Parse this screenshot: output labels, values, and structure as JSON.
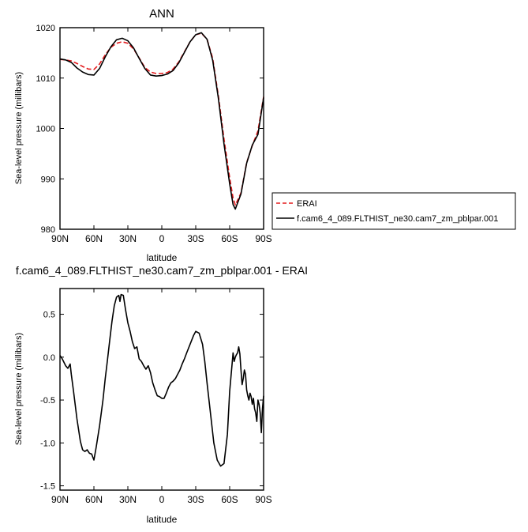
{
  "chart_data": [
    {
      "type": "line",
      "title": "ANN",
      "xlabel": "latitude",
      "ylabel": "Sea-level pressure (millibars)",
      "xlim": [
        90,
        -90
      ],
      "ylim": [
        980,
        1020
      ],
      "x_ticks": [
        90,
        60,
        30,
        0,
        -30,
        -60,
        -90
      ],
      "x_tick_labels": [
        "90N",
        "60N",
        "30N",
        "0",
        "30S",
        "60S",
        "90S"
      ],
      "y_ticks": [
        980,
        990,
        1000,
        1010,
        1020
      ],
      "y_tick_labels": [
        "980",
        "990",
        "1000",
        "1010",
        "1020"
      ],
      "grid": false,
      "legend_position": "outside-right",
      "series": [
        {
          "name": "ERAI",
          "color": "#e31a1c",
          "dash": "dashed",
          "x": [
            90,
            85,
            80,
            75,
            70,
            65,
            60,
            55,
            50,
            45,
            40,
            35,
            30,
            25,
            20,
            15,
            10,
            5,
            0,
            -5,
            -10,
            -15,
            -20,
            -25,
            -30,
            -35,
            -40,
            -45,
            -50,
            -55,
            -60,
            -63,
            -65,
            -70,
            -75,
            -80,
            -85,
            -90
          ],
          "y": [
            1013.7,
            1013.6,
            1013.4,
            1012.9,
            1012.3,
            1011.8,
            1011.7,
            1012.8,
            1014.6,
            1016.1,
            1016.9,
            1017.2,
            1016.9,
            1015.8,
            1014.0,
            1012.1,
            1011.2,
            1010.9,
            1010.9,
            1011.1,
            1011.8,
            1013.2,
            1015.2,
            1017.2,
            1018.6,
            1018.9,
            1017.7,
            1013.9,
            1006.5,
            997.9,
            990.2,
            986.2,
            984.8,
            987.2,
            993.2,
            996.6,
            999.5,
            1006.3
          ]
        },
        {
          "name": "f.cam6_4_089.FLTHIST_ne30.cam7_zm_pblpar.001",
          "color": "#000000",
          "dash": "solid",
          "x": [
            90,
            85,
            80,
            75,
            70,
            65,
            60,
            55,
            50,
            45,
            40,
            35,
            30,
            25,
            20,
            15,
            10,
            5,
            0,
            -5,
            -10,
            -15,
            -20,
            -25,
            -30,
            -35,
            -40,
            -45,
            -50,
            -55,
            -60,
            -63,
            -65,
            -70,
            -75,
            -80,
            -85,
            -90
          ],
          "y": [
            1013.8,
            1013.6,
            1013.1,
            1012.0,
            1011.2,
            1010.7,
            1010.6,
            1011.9,
            1014.2,
            1016.2,
            1017.6,
            1017.9,
            1017.4,
            1016.0,
            1013.9,
            1011.9,
            1010.6,
            1010.4,
            1010.5,
            1010.8,
            1011.5,
            1013.0,
            1015.1,
            1017.2,
            1018.6,
            1019.0,
            1017.7,
            1013.5,
            1006.0,
            996.9,
            989.0,
            984.9,
            984.0,
            987.0,
            993.1,
            996.7,
            998.8,
            1006.1
          ]
        }
      ]
    },
    {
      "type": "line",
      "title": "f.cam6_4_089.FLTHIST_ne30.cam7_zm_pblpar.001 - ERAI",
      "xlabel": "latitude",
      "ylabel": "Sea-level pressure (millibars)",
      "xlim": [
        90,
        -90
      ],
      "ylim": [
        -1.55,
        0.8
      ],
      "x_ticks": [
        90,
        60,
        30,
        0,
        -30,
        -60,
        -90
      ],
      "x_tick_labels": [
        "90N",
        "60N",
        "30N",
        "0",
        "30S",
        "60S",
        "90S"
      ],
      "y_ticks": [
        -1.5,
        -1.0,
        -0.5,
        0.0,
        0.5
      ],
      "y_tick_labels": [
        "-1.5",
        "-1.0",
        "-0.5",
        "0.0",
        "0.5"
      ],
      "grid": false,
      "series": [
        {
          "color": "#000000",
          "x": [
            90,
            88,
            85,
            83,
            81,
            80,
            78,
            75,
            72,
            70,
            68,
            66,
            64,
            62,
            60,
            58,
            55,
            52,
            50,
            48,
            46,
            44,
            42,
            40,
            38,
            37,
            36,
            34,
            32,
            30,
            28,
            26,
            24,
            22,
            20,
            18,
            16,
            14,
            12,
            10,
            8,
            6,
            4,
            2,
            0,
            -2,
            -4,
            -6,
            -8,
            -10,
            -12,
            -14,
            -16,
            -18,
            -20,
            -22,
            -25,
            -28,
            -30,
            -33,
            -36,
            -38,
            -40,
            -43,
            -46,
            -49,
            -52,
            -55,
            -58,
            -60,
            -62,
            -63,
            -64,
            -65,
            -66,
            -67,
            -68,
            -69,
            -70,
            -71,
            -72,
            -73,
            -74,
            -75,
            -76,
            -77,
            -78,
            -79,
            -80,
            -81,
            -82,
            -83,
            -84,
            -85,
            -86,
            -87,
            -88,
            -89,
            -90
          ],
          "y": [
            0.02,
            -0.02,
            -0.1,
            -0.13,
            -0.08,
            -0.2,
            -0.4,
            -0.72,
            -0.98,
            -1.08,
            -1.1,
            -1.08,
            -1.12,
            -1.13,
            -1.2,
            -1.05,
            -0.8,
            -0.5,
            -0.25,
            -0.03,
            0.2,
            0.42,
            0.6,
            0.7,
            0.72,
            0.65,
            0.73,
            0.72,
            0.55,
            0.4,
            0.3,
            0.18,
            0.1,
            0.12,
            -0.02,
            -0.05,
            -0.1,
            -0.14,
            -0.1,
            -0.18,
            -0.3,
            -0.38,
            -0.45,
            -0.46,
            -0.48,
            -0.48,
            -0.42,
            -0.35,
            -0.3,
            -0.28,
            -0.25,
            -0.2,
            -0.15,
            -0.08,
            -0.02,
            0.05,
            0.15,
            0.25,
            0.3,
            0.28,
            0.15,
            -0.05,
            -0.3,
            -0.65,
            -1.0,
            -1.2,
            -1.27,
            -1.24,
            -0.9,
            -0.4,
            -0.1,
            0.05,
            -0.05,
            0.0,
            0.03,
            0.05,
            0.12,
            0.04,
            -0.15,
            -0.32,
            -0.25,
            -0.15,
            -0.2,
            -0.38,
            -0.45,
            -0.5,
            -0.42,
            -0.46,
            -0.55,
            -0.48,
            -0.6,
            -0.65,
            -0.75,
            -0.5,
            -0.55,
            -0.65,
            -0.88,
            -0.6,
            -0.45
          ]
        }
      ]
    }
  ]
}
